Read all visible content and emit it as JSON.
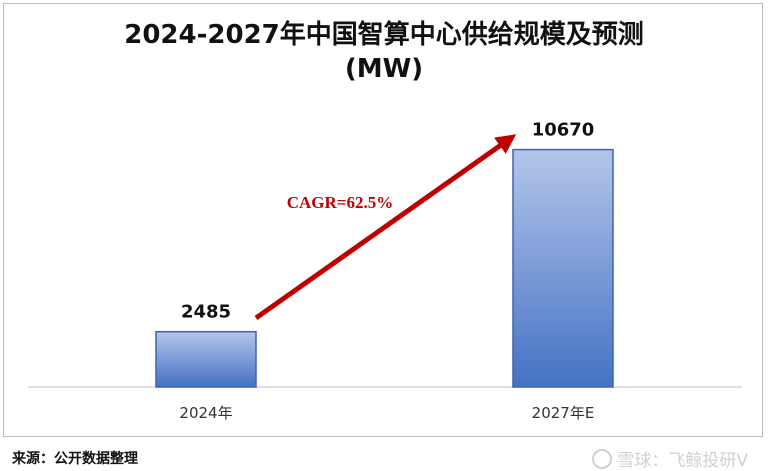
{
  "chart_data": {
    "type": "bar",
    "title_line1": "2024-2027年中国智算中心供给规模及预测",
    "title_line2": "(MW)",
    "categories": [
      "2024年",
      "2027年E"
    ],
    "values": [
      2485,
      10670
    ],
    "ylim": [
      0,
      12000
    ],
    "grid": false,
    "annotation": "CAGR=62.5%",
    "colors": {
      "bar_top": "#b4c5ea",
      "bar_bottom": "#4472c4",
      "bar_border": "#3d64ad",
      "arrow": "#c00000",
      "annotation": "#c00000"
    }
  },
  "source": "来源：公开数据整理",
  "watermark": "雪球：飞鲸投研V",
  "watermark_icon": "snowball-logo-icon"
}
